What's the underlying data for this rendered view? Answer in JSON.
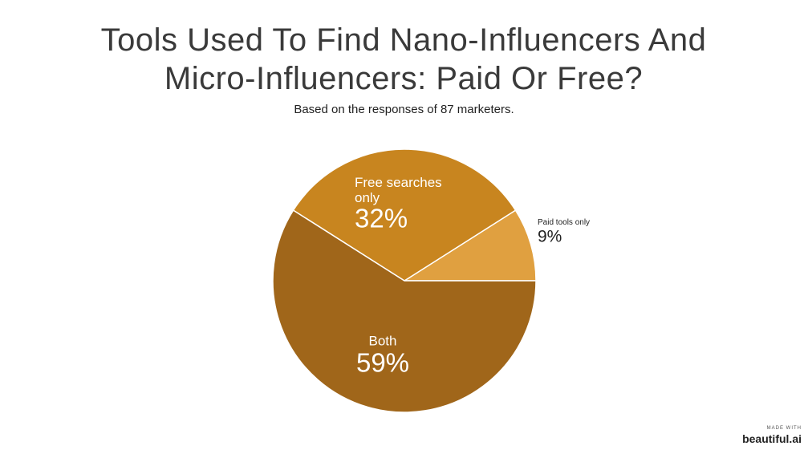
{
  "chart_data": {
    "type": "pie",
    "title": "Tools Used To Find Nano-Influencers And Micro-Influencers: Paid Or Free?",
    "subtitle": "Based on the responses of 87 marketers.",
    "categories": [
      "Paid tools only",
      "Free searches only",
      "Both"
    ],
    "values": [
      9,
      32,
      59
    ],
    "value_labels": [
      "9%",
      "32%",
      "59%"
    ],
    "colors": [
      "#e0a040",
      "#c8851f",
      "#a0661a"
    ]
  },
  "branding": {
    "made_with": "MADE WITH",
    "logo": "beautiful.ai"
  }
}
